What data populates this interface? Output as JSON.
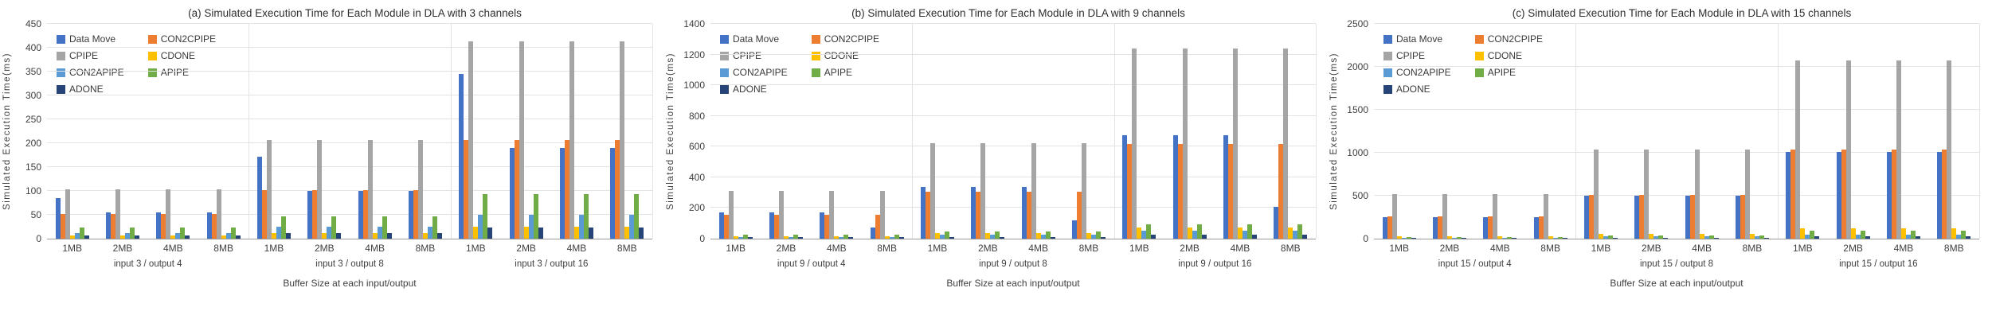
{
  "page": {
    "background": "#ffffff",
    "text_color": "#3f3f3f",
    "gridline_color": "#e3e3e3",
    "axis_line_color": "#9a9a9a"
  },
  "chart_data": [
    {
      "type": "bar",
      "title": "(a) Simulated Execution Time for Each Module in DLA with 3 channels",
      "ylabel": "Simulated Execution Time(ms)",
      "xlabel": "Buffer Size at each input/output",
      "ylim": [
        0,
        450
      ],
      "ytick_step": 50,
      "grid": true,
      "legend_position": "top-left",
      "categories": [
        "1MB",
        "2MB",
        "4MB",
        "8MB",
        "1MB",
        "2MB",
        "4MB",
        "8MB",
        "1MB",
        "2MB",
        "4MB",
        "8MB"
      ],
      "group_labels": [
        "input 3 / output 4",
        "input 3 / output 8",
        "input 3 / output 16"
      ],
      "series": [
        {
          "name": "Data Move",
          "color": "#4472C4",
          "values": [
            85,
            55,
            55,
            55,
            172,
            100,
            100,
            100,
            345,
            190,
            190,
            190
          ]
        },
        {
          "name": "CON2CPIPE",
          "color": "#ED7D31",
          "values": [
            52,
            52,
            52,
            52,
            102,
            102,
            102,
            102,
            206,
            206,
            206,
            206
          ]
        },
        {
          "name": "CPIPE",
          "color": "#A5A5A5",
          "values": [
            103,
            103,
            103,
            103,
            207,
            207,
            207,
            207,
            413,
            413,
            413,
            413
          ]
        },
        {
          "name": "CDONE",
          "color": "#FFC000",
          "values": [
            6,
            6,
            6,
            6,
            12,
            12,
            12,
            12,
            25,
            25,
            25,
            25
          ]
        },
        {
          "name": "CON2APIPE",
          "color": "#5B9BD5",
          "values": [
            12,
            12,
            12,
            12,
            25,
            25,
            25,
            25,
            50,
            50,
            50,
            50
          ]
        },
        {
          "name": "APIPE",
          "color": "#70AD47",
          "values": [
            23,
            23,
            23,
            23,
            47,
            47,
            47,
            47,
            93,
            93,
            93,
            93
          ]
        },
        {
          "name": "ADONE",
          "color": "#264478",
          "values": [
            6,
            6,
            6,
            6,
            12,
            12,
            12,
            12,
            24,
            24,
            24,
            24
          ]
        }
      ]
    },
    {
      "type": "bar",
      "title": "(b) Simulated Execution Time for Each Module in DLA with 9 channels",
      "ylabel": "Simulated Execution Time(ms)",
      "xlabel": "Buffer Size at each input/output",
      "ylim": [
        0,
        1400
      ],
      "ytick_step": 200,
      "grid": true,
      "legend_position": "top-left",
      "categories": [
        "1MB",
        "2MB",
        "4MB",
        "8MB",
        "1MB",
        "2MB",
        "4MB",
        "8MB",
        "1MB",
        "2MB",
        "4MB",
        "8MB"
      ],
      "group_labels": [
        "input 9 / output 4",
        "input 9 / output 8",
        "input 9 / output 16"
      ],
      "series": [
        {
          "name": "Data Move",
          "color": "#4472C4",
          "values": [
            170,
            170,
            170,
            75,
            335,
            335,
            335,
            120,
            675,
            675,
            675,
            210
          ]
        },
        {
          "name": "CON2CPIPE",
          "color": "#ED7D31",
          "values": [
            157,
            157,
            157,
            157,
            308,
            308,
            308,
            308,
            618,
            618,
            618,
            618
          ]
        },
        {
          "name": "CPIPE",
          "color": "#A5A5A5",
          "values": [
            310,
            310,
            310,
            310,
            620,
            620,
            620,
            620,
            1240,
            1240,
            1240,
            1240
          ]
        },
        {
          "name": "CDONE",
          "color": "#FFC000",
          "values": [
            18,
            18,
            18,
            18,
            35,
            35,
            35,
            35,
            75,
            75,
            75,
            75
          ]
        },
        {
          "name": "CON2APIPE",
          "color": "#5B9BD5",
          "values": [
            12,
            12,
            12,
            12,
            28,
            28,
            28,
            28,
            50,
            50,
            50,
            50
          ]
        },
        {
          "name": "APIPE",
          "color": "#70AD47",
          "values": [
            25,
            25,
            25,
            25,
            48,
            48,
            48,
            48,
            95,
            95,
            95,
            95
          ]
        },
        {
          "name": "ADONE",
          "color": "#264478",
          "values": [
            8,
            8,
            8,
            8,
            13,
            13,
            13,
            13,
            25,
            25,
            25,
            25
          ]
        }
      ]
    },
    {
      "type": "bar",
      "title": "(c) Simulated Execution Time for Each Module in DLA with 15 channels",
      "ylabel": "Simulated Execution Time(ms)",
      "xlabel": "Buffer Size at each input/output",
      "ylim": [
        0,
        2500
      ],
      "ytick_step": 500,
      "grid": true,
      "legend_position": "top-left",
      "categories": [
        "1MB",
        "2MB",
        "4MB",
        "8MB",
        "1MB",
        "2MB",
        "4MB",
        "8MB",
        "1MB",
        "2MB",
        "4MB",
        "8MB"
      ],
      "group_labels": [
        "input 15 / output 4",
        "input 15 / output 8",
        "input 15 / output 16"
      ],
      "series": [
        {
          "name": "Data Move",
          "color": "#4472C4",
          "values": [
            250,
            250,
            250,
            250,
            500,
            500,
            500,
            500,
            1010,
            1010,
            1010,
            1010
          ]
        },
        {
          "name": "CON2CPIPE",
          "color": "#ED7D31",
          "values": [
            258,
            258,
            258,
            258,
            512,
            512,
            512,
            512,
            1035,
            1035,
            1035,
            1035
          ]
        },
        {
          "name": "CPIPE",
          "color": "#A5A5A5",
          "values": [
            515,
            515,
            515,
            515,
            1035,
            1035,
            1035,
            1035,
            2070,
            2070,
            2070,
            2070
          ]
        },
        {
          "name": "CDONE",
          "color": "#FFC000",
          "values": [
            28,
            28,
            28,
            28,
            55,
            55,
            55,
            55,
            120,
            120,
            120,
            120
          ]
        },
        {
          "name": "CON2APIPE",
          "color": "#5B9BD5",
          "values": [
            10,
            10,
            10,
            10,
            25,
            25,
            25,
            25,
            50,
            50,
            50,
            50
          ]
        },
        {
          "name": "APIPE",
          "color": "#70AD47",
          "values": [
            20,
            20,
            20,
            20,
            40,
            40,
            40,
            40,
            90,
            90,
            90,
            90
          ]
        },
        {
          "name": "ADONE",
          "color": "#264478",
          "values": [
            8,
            8,
            8,
            8,
            13,
            13,
            13,
            13,
            28,
            28,
            28,
            28
          ]
        }
      ]
    }
  ]
}
